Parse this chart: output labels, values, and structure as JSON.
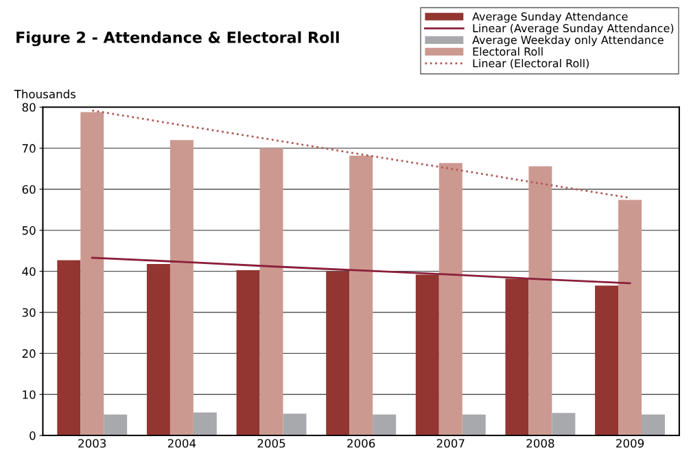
{
  "chart_data": {
    "type": "bar",
    "title": "Figure 2 - Attendance & Electoral Roll",
    "ylabel": "Thousands",
    "categories": [
      "2003",
      "2004",
      "2005",
      "2006",
      "2007",
      "2008",
      "2009"
    ],
    "series": [
      {
        "name": "Average Sunday Attendance",
        "color": "#933530",
        "values": [
          42.7,
          41.8,
          40.3,
          40.0,
          39.2,
          38.2,
          36.5
        ]
      },
      {
        "name": "Linear (Average Sunday Attendance)",
        "type": "line",
        "line_style": "solid",
        "color": "#8b1f3a",
        "values": [
          43.3,
          42.3,
          41.2,
          40.2,
          39.2,
          38.1,
          37.1
        ]
      },
      {
        "name": "Average Weekday only Attendance",
        "color": "#a7a9ac",
        "values": [
          5.1,
          5.6,
          5.3,
          5.1,
          5.1,
          5.5,
          5.1
        ]
      },
      {
        "name": "Electoral Roll",
        "color": "#cc9990",
        "values": [
          78.8,
          72.0,
          70.0,
          68.2,
          66.4,
          65.6,
          57.4
        ]
      },
      {
        "name": "Linear (Electoral Roll)",
        "type": "line",
        "line_style": "dotted",
        "color": "#b05a55",
        "values": [
          79.2,
          75.6,
          72.1,
          68.5,
          65.0,
          61.4,
          57.9
        ]
      }
    ],
    "ylim": [
      0,
      80
    ],
    "yticks": [
      0,
      10,
      20,
      30,
      40,
      50,
      60,
      70,
      80
    ],
    "grid": "y",
    "legend": "top right"
  }
}
